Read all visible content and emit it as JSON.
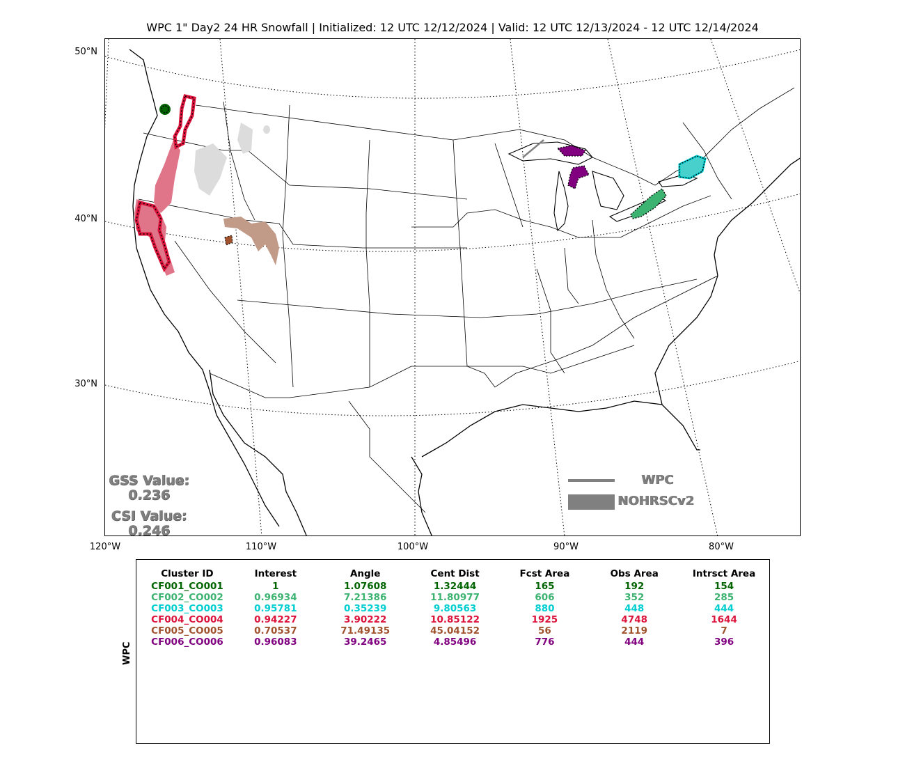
{
  "title": "WPC 1\" Day2 24 HR Snowfall | Initialized: 12 UTC 12/12/2024 | Valid: 12 UTC 12/13/2024 - 12 UTC 12/14/2024",
  "map": {
    "lat_labels": [
      "50°N",
      "40°N",
      "30°N"
    ],
    "lon_labels": [
      "120°W",
      "110°W",
      "100°W",
      "90°W",
      "80°W"
    ],
    "colors": {
      "cluster1": "#006400",
      "cluster2": "#3cb371",
      "cluster3": "#00ced1",
      "cluster4": "#dc143c",
      "cluster5": "#a0522d",
      "cluster6": "#800080",
      "obs_unmatched": "#dcdcdc",
      "legend": "#808080"
    }
  },
  "scores": {
    "gss_label": "GSS Value:",
    "gss_value": "0.236",
    "csi_label": "CSI Value:",
    "csi_value": "0.246"
  },
  "legend": {
    "wpc_label": "WPC",
    "nohrsc_label": "NOHRSCv2"
  },
  "stats": {
    "row_label": "WPC",
    "headers": [
      "Cluster ID",
      "Interest",
      "Angle",
      "Cent Dist",
      "Fcst Area",
      "Obs Area",
      "Intrsct Area"
    ],
    "rows": [
      {
        "color": "#006400",
        "cells": [
          "CF001_CO001",
          "1",
          "1.07608",
          "1.32444",
          "165",
          "192",
          "154"
        ]
      },
      {
        "color": "#3cb371",
        "cells": [
          "CF002_CO002",
          "0.96934",
          "7.21386",
          "11.80977",
          "606",
          "352",
          "285"
        ]
      },
      {
        "color": "#00ced1",
        "cells": [
          "CF003_CO003",
          "0.95781",
          "0.35239",
          "9.80563",
          "880",
          "448",
          "444"
        ]
      },
      {
        "color": "#dc143c",
        "cells": [
          "CF004_CO004",
          "0.94227",
          "3.90222",
          "10.85122",
          "1925",
          "4748",
          "1644"
        ]
      },
      {
        "color": "#a0522d",
        "cells": [
          "CF005_CO005",
          "0.70537",
          "71.49135",
          "45.04152",
          "56",
          "2119",
          "7"
        ]
      },
      {
        "color": "#800080",
        "cells": [
          "CF006_CO006",
          "0.96083",
          "39.2465",
          "4.85496",
          "776",
          "444",
          "396"
        ]
      }
    ]
  }
}
